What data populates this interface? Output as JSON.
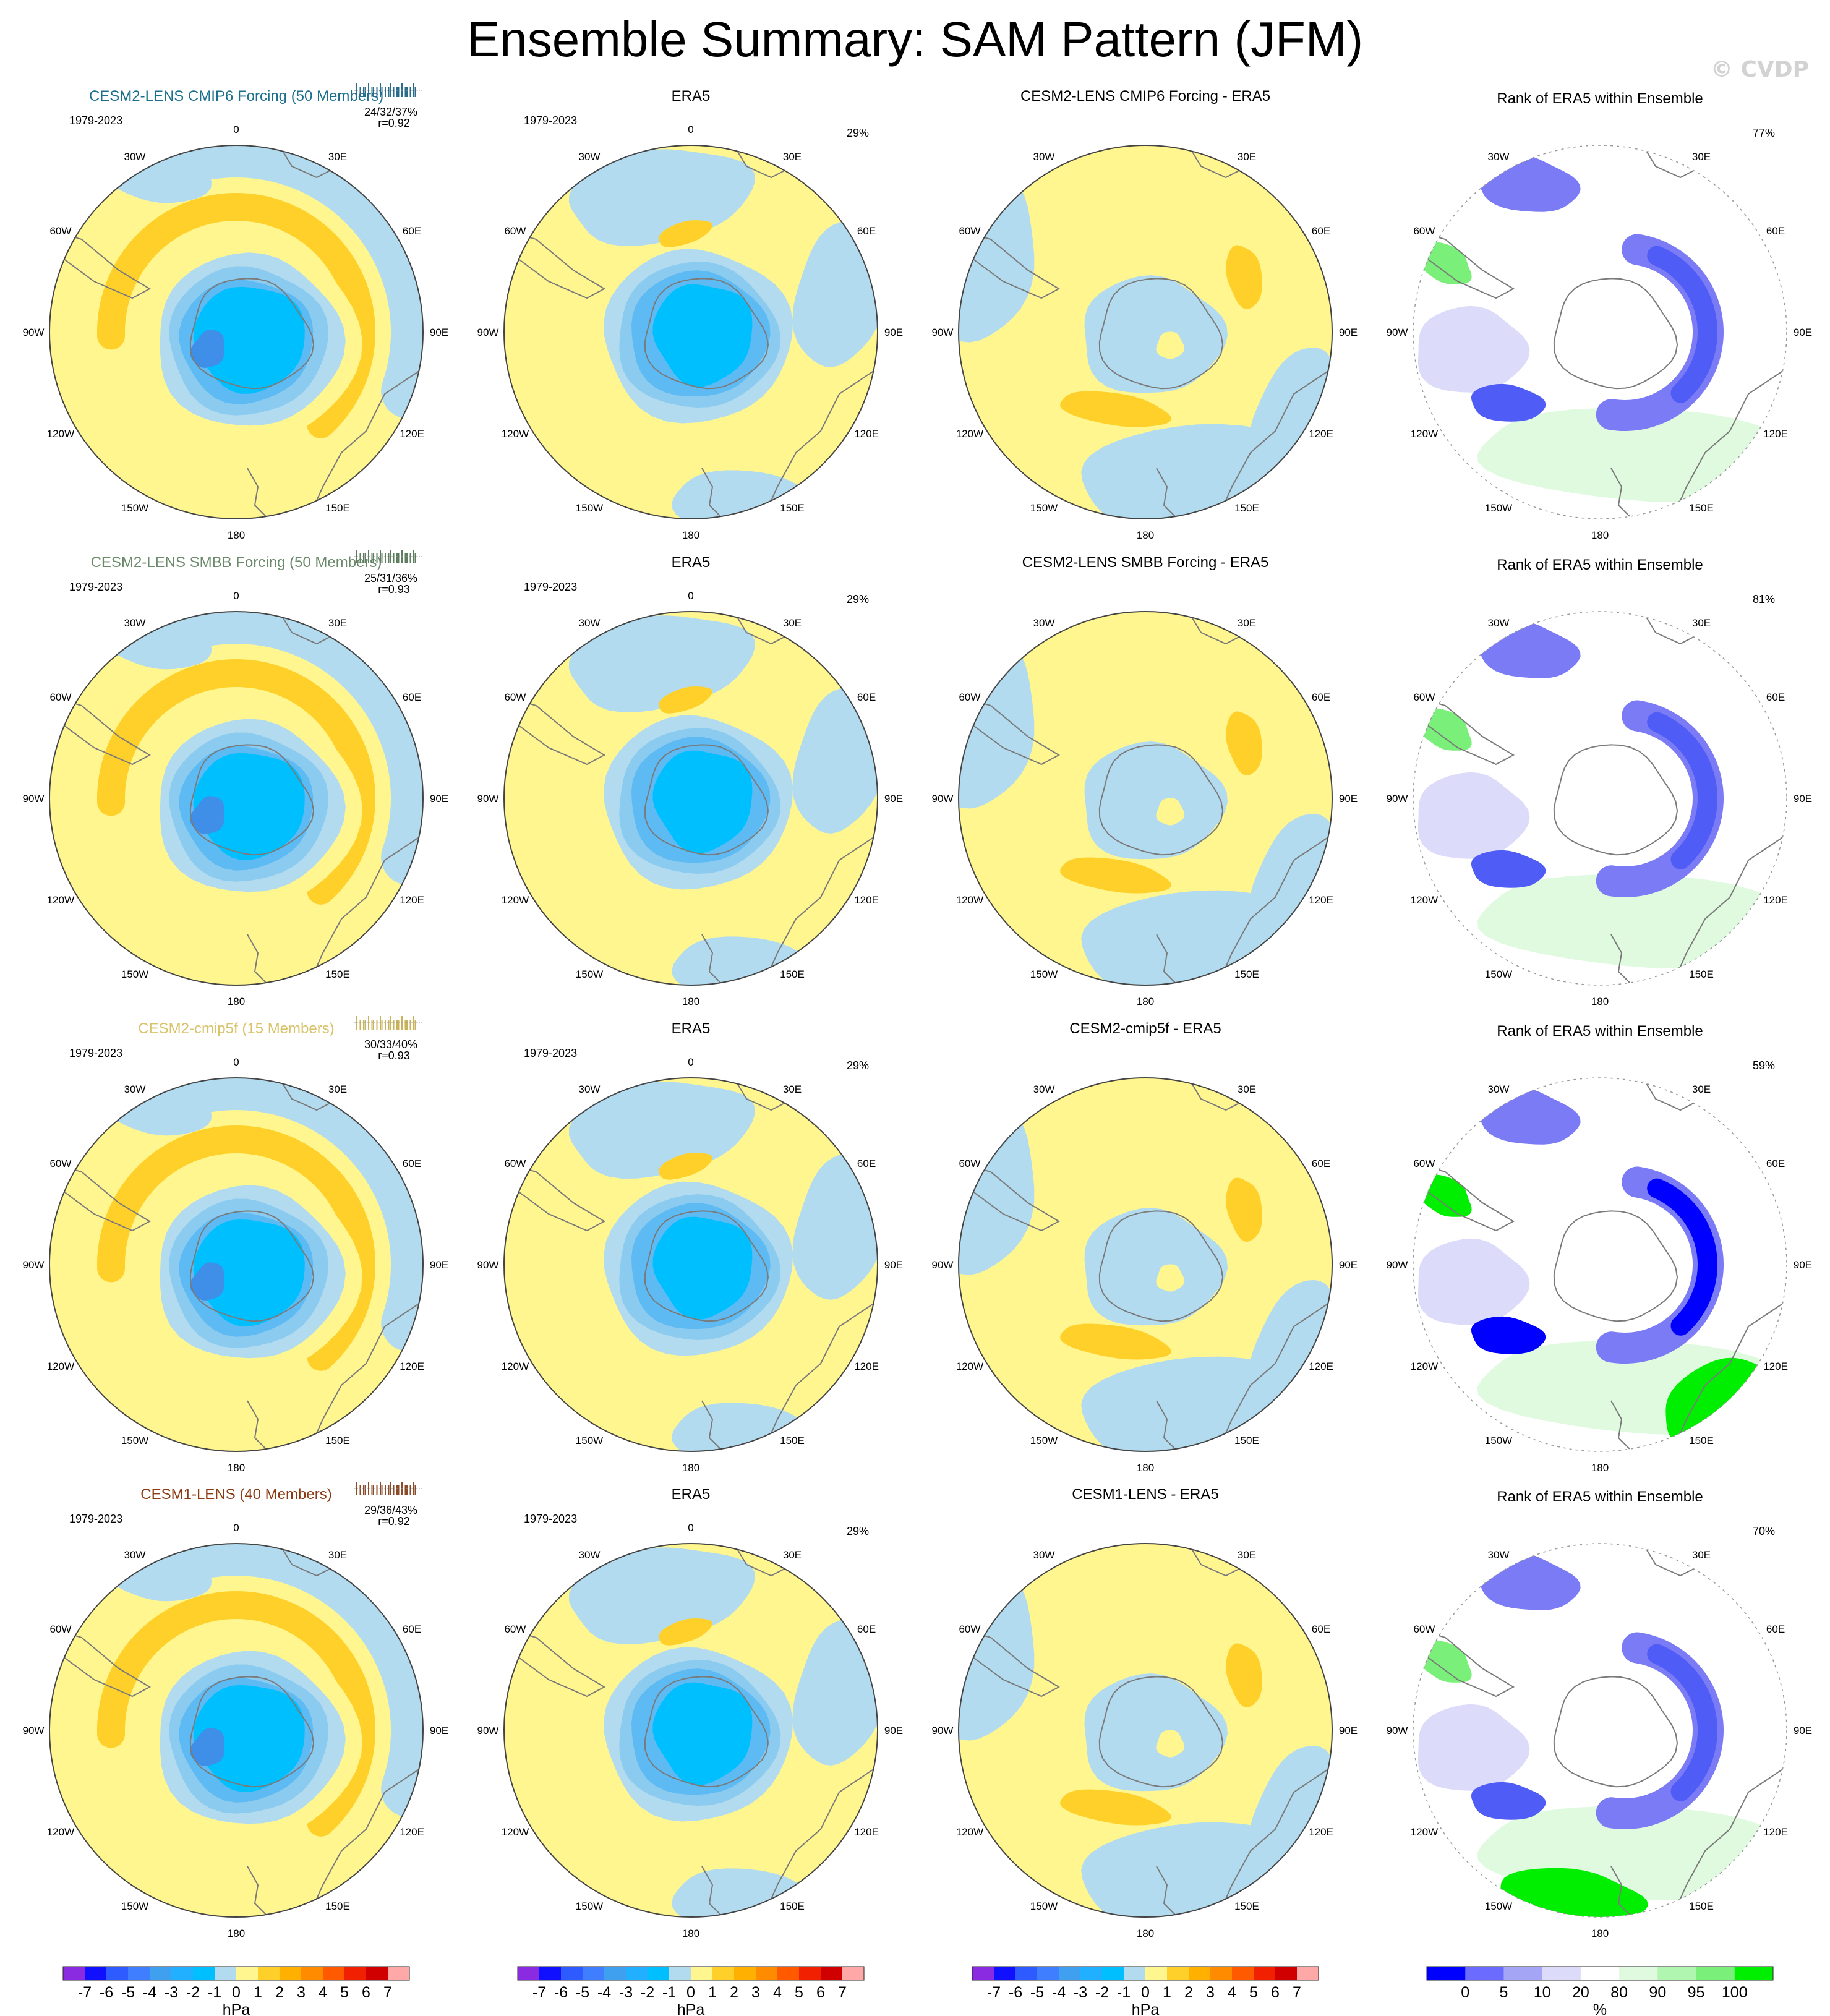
{
  "title": "Ensemble Summary: SAM Pattern (JFM)",
  "watermark": "© CVDP",
  "colors": {
    "yellow": "#fff68f",
    "orange": "#ffd02a",
    "lightblue": "#b3dbef",
    "blue1": "#8ccbf0",
    "blue2": "#5ebaf3",
    "blue3": "#00bfff",
    "blue4": "#3f8fe8",
    "land": "#7a7a7a"
  },
  "longitude_labels": [
    "0",
    "30E",
    "60E",
    "90E",
    "120E",
    "150E",
    "180",
    "150W",
    "120W",
    "90W",
    "60W",
    "30W"
  ],
  "rows": [
    {
      "model": {
        "title": "CESM2-LENS CMIP6 Forcing (50 Members)",
        "title_color": "#1c6f8c",
        "period": "1979-2023",
        "stats": "24/32/37%",
        "corr": "r=0.92",
        "strip_color": "#2a6c8c"
      },
      "obs": {
        "title": "ERA5",
        "period": "1979-2023",
        "pct": "29%"
      },
      "diff": {
        "title": "CESM2-LENS CMIP6 Forcing - ERA5"
      },
      "rank": {
        "title": "Rank of ERA5 within Ensemble",
        "pct": "77%"
      }
    },
    {
      "model": {
        "title": "CESM2-LENS SMBB Forcing (50 Members)",
        "title_color": "#6b8a6b",
        "period": "1979-2023",
        "stats": "25/31/36%",
        "corr": "r=0.93",
        "strip_color": "#5e7c5e"
      },
      "obs": {
        "title": "ERA5",
        "period": "1979-2023",
        "pct": "29%"
      },
      "diff": {
        "title": "CESM2-LENS SMBB Forcing - ERA5"
      },
      "rank": {
        "title": "Rank of ERA5 within Ensemble",
        "pct": "81%"
      }
    },
    {
      "model": {
        "title": "CESM2-cmip5f (15 Members)",
        "title_color": "#d9c36a",
        "period": "1979-2023",
        "stats": "30/33/40%",
        "corr": "r=0.93",
        "strip_color": "#c8b35a"
      },
      "obs": {
        "title": "ERA5",
        "period": "1979-2023",
        "pct": "29%"
      },
      "diff": {
        "title": "CESM2-cmip5f - ERA5"
      },
      "rank": {
        "title": "Rank of ERA5 within Ensemble",
        "pct": "59%"
      }
    },
    {
      "model": {
        "title": "CESM1-LENS (40 Members)",
        "title_color": "#8b3a12",
        "period": "1979-2023",
        "stats": "29/36/43%",
        "corr": "r=0.92",
        "strip_color": "#8b4a2a"
      },
      "obs": {
        "title": "ERA5",
        "period": "1979-2023",
        "pct": "29%"
      },
      "diff": {
        "title": "CESM1-LENS - ERA5"
      },
      "rank": {
        "title": "Rank of ERA5 within Ensemble",
        "pct": "70%"
      }
    }
  ],
  "colorbar_hpa": {
    "labels": [
      "-7",
      "-6",
      "-5",
      "-4",
      "-3",
      "-2",
      "-1",
      "0",
      "1",
      "2",
      "3",
      "4",
      "5",
      "6",
      "7"
    ],
    "colors": [
      "#8a2be2",
      "#1010ff",
      "#2e5bff",
      "#3f7fff",
      "#3fa0f0",
      "#20b0ff",
      "#00bfff",
      "#b3dbef",
      "#fff68f",
      "#ffd02a",
      "#ffb000",
      "#ff8c00",
      "#ff5a00",
      "#f02000",
      "#d00000",
      "#ffa8a8"
    ],
    "unit": "hPa"
  },
  "colorbar_pct": {
    "labels": [
      "0",
      "5",
      "10",
      "20",
      "80",
      "90",
      "95",
      "100"
    ],
    "colors": [
      "#0000ff",
      "#6b6bff",
      "#a5a5f5",
      "#dcdcfa",
      "#ffffff",
      "#e0fae0",
      "#b0f5b0",
      "#7aef7a",
      "#00ef00"
    ],
    "unit": "%"
  }
}
